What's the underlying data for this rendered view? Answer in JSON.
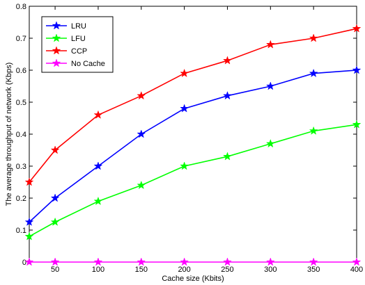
{
  "chart_data": {
    "type": "line",
    "title": "",
    "xlabel": "Cache size (Kbits)",
    "ylabel": "The average throughput of network (Kbps)",
    "x": [
      20,
      50,
      100,
      150,
      200,
      250,
      300,
      350,
      400
    ],
    "x_ticks": [
      50,
      100,
      150,
      200,
      250,
      300,
      350,
      400
    ],
    "x_tick_labels": [
      "50",
      "100",
      "150",
      "200",
      "250",
      "300",
      "350",
      "400"
    ],
    "y_ticks": [
      0,
      0.1,
      0.2,
      0.3,
      0.4,
      0.5,
      0.6,
      0.7,
      0.8
    ],
    "y_tick_labels": [
      "0",
      "0.1",
      "0.2",
      "0.3",
      "0.4",
      "0.5",
      "0.6",
      "0.7",
      "0.8"
    ],
    "xlim": [
      20,
      400
    ],
    "ylim": [
      0,
      0.8
    ],
    "grid": false,
    "legend_position": "top-left",
    "series": [
      {
        "name": "LRU",
        "color": "#0000ff",
        "marker": "star",
        "values": [
          0.125,
          0.2,
          0.3,
          0.4,
          0.48,
          0.52,
          0.55,
          0.59,
          0.6
        ]
      },
      {
        "name": "LFU",
        "color": "#00ff00",
        "marker": "star",
        "values": [
          0.08,
          0.125,
          0.19,
          0.24,
          0.3,
          0.33,
          0.37,
          0.41,
          0.43
        ]
      },
      {
        "name": "CCP",
        "color": "#ff0000",
        "marker": "star",
        "values": [
          0.25,
          0.35,
          0.46,
          0.52,
          0.59,
          0.63,
          0.68,
          0.7,
          0.73
        ]
      },
      {
        "name": "No Cache",
        "color": "#ff00ff",
        "marker": "star",
        "values": [
          0,
          0,
          0,
          0,
          0,
          0,
          0,
          0,
          0
        ]
      }
    ]
  }
}
